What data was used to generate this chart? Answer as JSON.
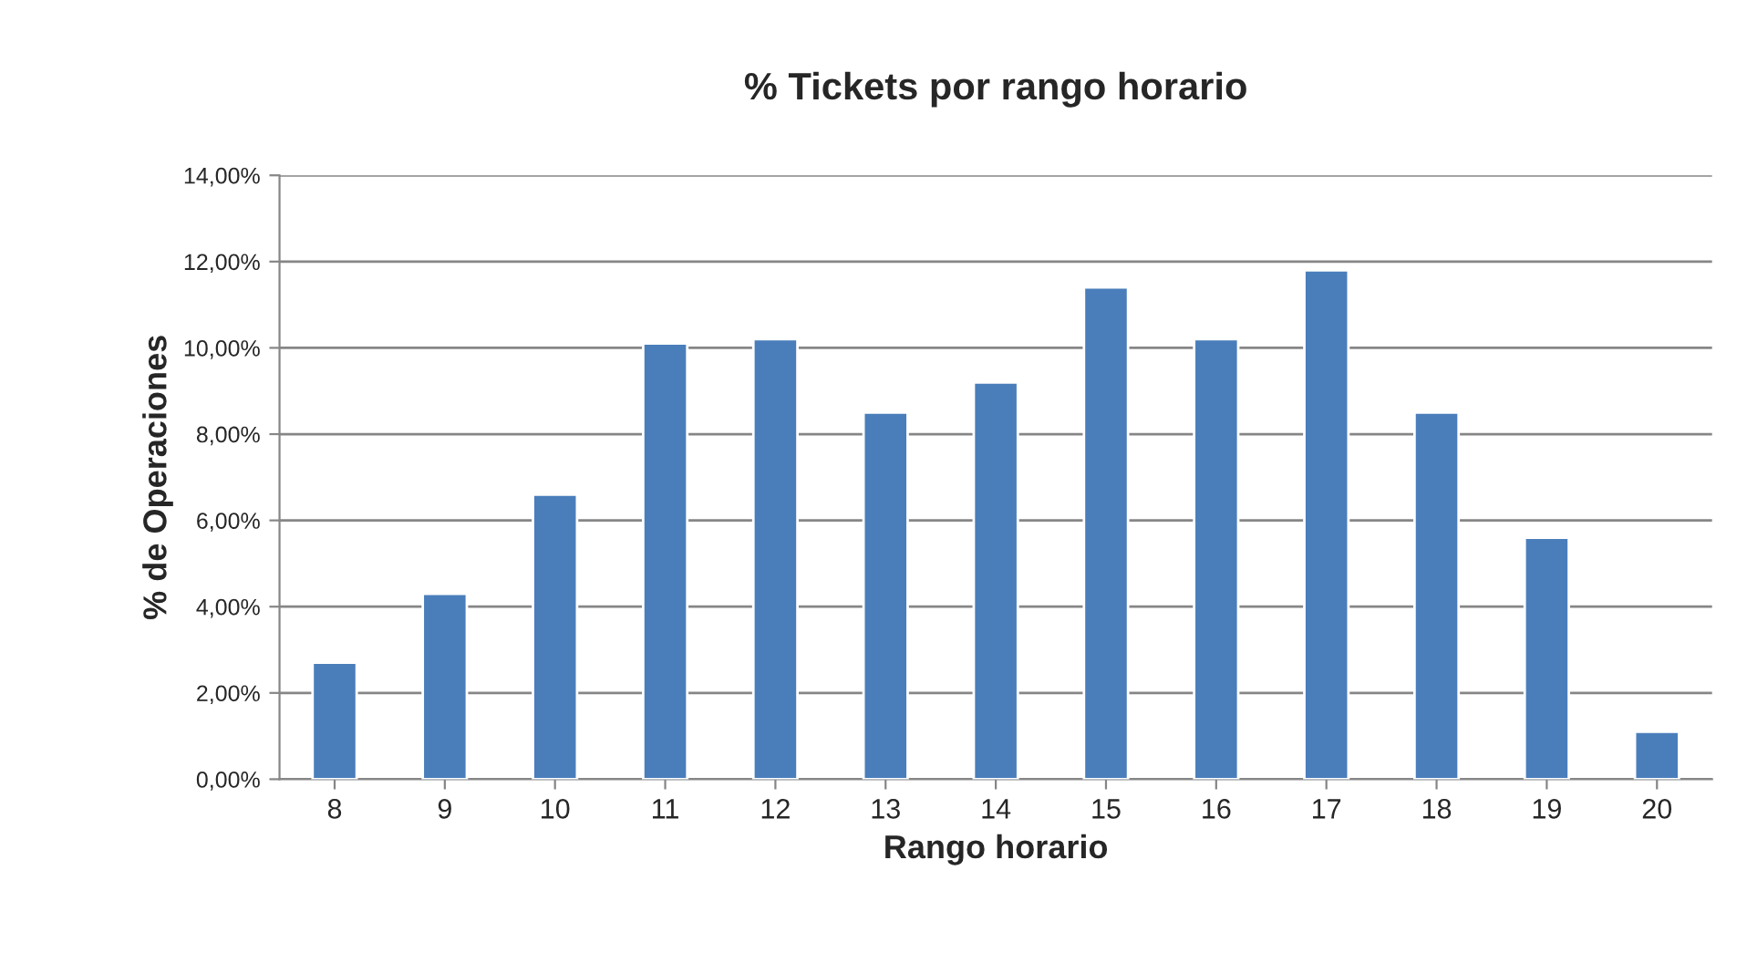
{
  "chart_data": {
    "type": "bar",
    "title": "% Tickets por rango horario",
    "xlabel": "Rango horario",
    "ylabel": "% de Operaciones",
    "categories": [
      "8",
      "9",
      "10",
      "11",
      "12",
      "13",
      "14",
      "15",
      "16",
      "17",
      "18",
      "19",
      "20"
    ],
    "values": [
      2.7,
      4.3,
      6.6,
      10.1,
      10.2,
      8.5,
      9.2,
      11.4,
      10.2,
      11.8,
      8.5,
      5.6,
      1.1
    ],
    "color": "#4a7ebb",
    "ylim": [
      0,
      14
    ],
    "yticks": [
      {
        "value": 0,
        "label": "0,00%"
      },
      {
        "value": 2,
        "label": "2,00%"
      },
      {
        "value": 4,
        "label": "4,00%"
      },
      {
        "value": 6,
        "label": "6,00%"
      },
      {
        "value": 8,
        "label": "8,00%"
      },
      {
        "value": 10,
        "label": "10,00%"
      },
      {
        "value": 12,
        "label": "12,00%"
      },
      {
        "value": 14,
        "label": "14,00%"
      }
    ],
    "grid": "y",
    "legend": false
  }
}
